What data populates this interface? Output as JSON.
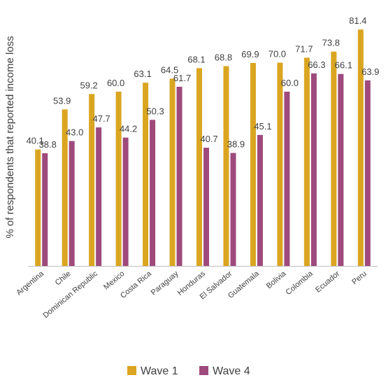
{
  "chart_data": {
    "type": "bar",
    "ylabel": "% of respondents that reported income loss",
    "xlabel": "",
    "ylim": [
      0,
      85
    ],
    "grid": false,
    "legend": "bottom",
    "categories": [
      "Argentina",
      "Chile",
      "Dominican Republic",
      "Mexico",
      "Costa Rica",
      "Paraguay",
      "Honduras",
      "El Salvador",
      "Guatemala",
      "Bolivia",
      "Colombia",
      "Ecuador",
      "Peru"
    ],
    "series": [
      {
        "name": "Wave 1",
        "color": "#DAA520",
        "values": [
          40.1,
          53.9,
          59.2,
          60.0,
          63.1,
          64.5,
          68.1,
          68.8,
          69.9,
          70.0,
          71.7,
          73.8,
          81.4
        ],
        "labels": [
          "40.1",
          "53.9",
          "59.2",
          "60.0",
          "63.1",
          "64.5",
          "68.1",
          "68.8",
          "69.9",
          "70.0",
          "71.7",
          "73.8",
          "81.4"
        ]
      },
      {
        "name": "Wave 4",
        "color": "#9E4A7C",
        "values": [
          38.8,
          43.0,
          47.7,
          44.2,
          50.3,
          61.7,
          40.7,
          38.9,
          45.1,
          60.0,
          66.3,
          66.1,
          63.9
        ],
        "labels": [
          "38.8",
          "43.0",
          "47.7",
          "44.2",
          "50.3",
          "61.7",
          "40.7",
          "38.9",
          "45.1",
          "60.0",
          "66.3",
          "66.1",
          "63.9"
        ]
      }
    ]
  }
}
